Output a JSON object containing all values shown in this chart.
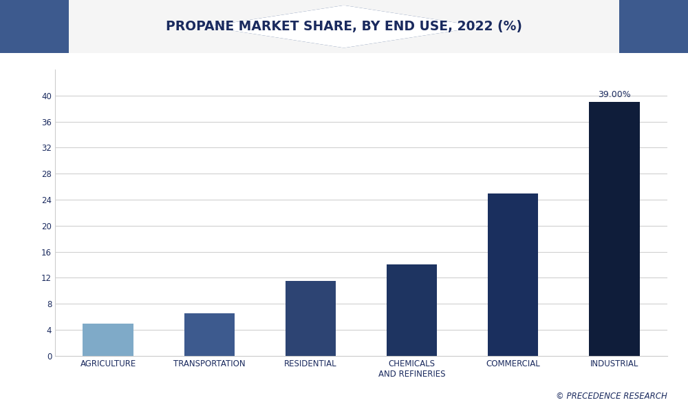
{
  "title": "PROPANE MARKET SHARE, BY END USE, 2022 (%)",
  "categories": [
    "AGRICULTURE",
    "TRANSPORTATION",
    "RESIDENTIAL",
    "CHEMICALS\nAND REFINERIES",
    "COMMERCIAL",
    "INDUSTRIAL"
  ],
  "values": [
    5.0,
    6.5,
    11.5,
    14.0,
    25.0,
    39.0
  ],
  "bar_colors": [
    "#7faac8",
    "#3d5a8e",
    "#2d4473",
    "#1e3461",
    "#1a2f5e",
    "#0f1d3a"
  ],
  "annotation_value": "39.00%",
  "annotation_index": 5,
  "ylim": [
    0,
    44
  ],
  "yticks": [
    0,
    4,
    8,
    12,
    16,
    20,
    24,
    28,
    32,
    36,
    40
  ],
  "background_color": "#ffffff",
  "plot_bg_color": "#ffffff",
  "title_color": "#1a2a5e",
  "tick_label_color": "#1a2a5e",
  "grid_color": "#d0d0d0",
  "watermark": "© PRECEDENCE RESEARCH",
  "title_fontsize": 13.5,
  "tick_fontsize": 8.5,
  "annotation_fontsize": 9,
  "watermark_fontsize": 8.5,
  "header_bg": "#f5f5f5",
  "header_border_color": "#1a2a5e",
  "corner_dark": "#0f1d3a",
  "corner_mid": "#3d5a8e",
  "bar_width": 0.5
}
